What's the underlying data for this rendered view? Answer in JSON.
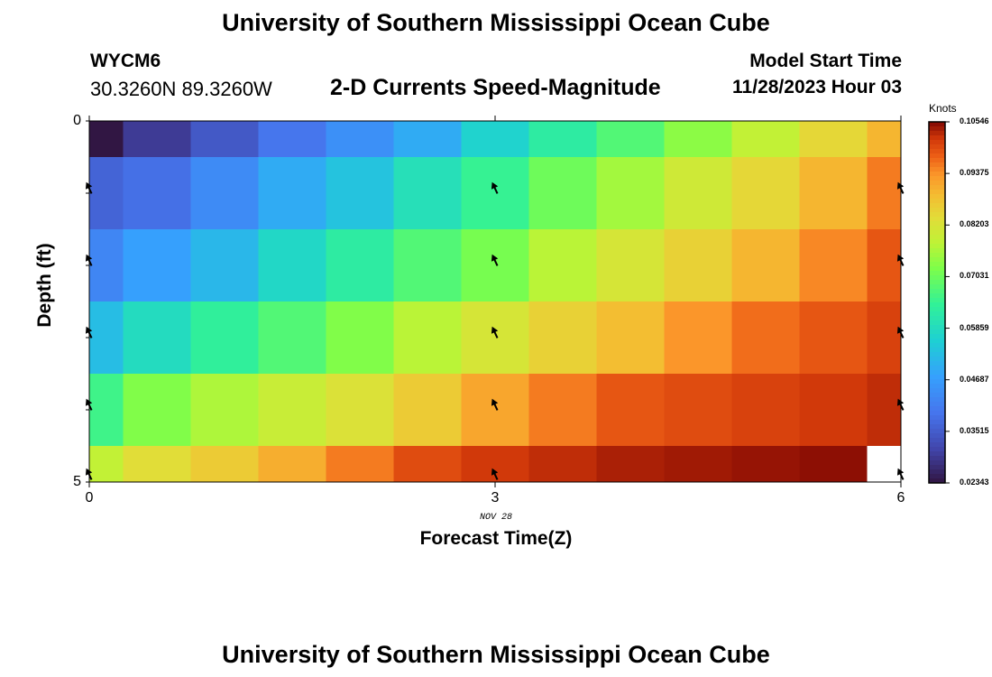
{
  "title_top": "University of Southern Mississippi Ocean Cube",
  "title_bottom": "University of Southern Mississippi Ocean Cube",
  "station": {
    "id": "WYCM6",
    "coordinates": "30.3260N  89.3260W"
  },
  "model": {
    "label": "Model Start Time",
    "time": "11/28/2023 Hour 03"
  },
  "chart_data": {
    "type": "heatmap",
    "title": "2-D Currents Speed-Magnitude",
    "xlabel": "Forecast Time(Z)",
    "ylabel": "Depth (ft)",
    "date_label": "NOV 28",
    "x_ticks": [
      "0",
      "3",
      "6"
    ],
    "y_ticks": [
      "0",
      "5"
    ],
    "xlim": [
      0,
      6
    ],
    "ylim": [
      0,
      5
    ],
    "colorbar": {
      "unit": "Knots",
      "min": 0.02343,
      "max": 0.10546,
      "ticks": [
        "0.10546",
        "0.09375",
        "0.08203",
        "0.07031",
        "0.05859",
        "0.04687",
        "0.03515",
        "0.02343"
      ]
    },
    "time_columns": [
      0,
      0.5,
      1,
      1.5,
      2,
      2.5,
      3,
      3.5,
      4,
      4.5,
      5,
      5.5,
      6
    ],
    "depth_rows": [
      0,
      1,
      2,
      3,
      4,
      5
    ],
    "speed_grid": [
      [
        0.024,
        0.03,
        0.035,
        0.04,
        0.045,
        0.05,
        0.057,
        0.063,
        0.068,
        0.074,
        0.079,
        0.085,
        0.09
      ],
      [
        0.037,
        0.039,
        0.044,
        0.05,
        0.054,
        0.06,
        0.065,
        0.071,
        0.076,
        0.081,
        0.085,
        0.09,
        0.096
      ],
      [
        0.043,
        0.048,
        0.052,
        0.058,
        0.063,
        0.068,
        0.072,
        0.078,
        0.082,
        0.086,
        0.09,
        0.095,
        0.099
      ],
      [
        0.053,
        0.059,
        0.064,
        0.068,
        0.073,
        0.078,
        0.082,
        0.086,
        0.089,
        0.094,
        0.097,
        0.099,
        0.101
      ],
      [
        0.066,
        0.073,
        0.077,
        0.08,
        0.083,
        0.087,
        0.092,
        0.096,
        0.099,
        0.1,
        0.101,
        0.102,
        0.103
      ],
      [
        0.079,
        0.084,
        0.087,
        0.091,
        0.096,
        0.1,
        0.102,
        0.103,
        0.104,
        0.1045,
        0.105,
        0.1054,
        null
      ]
    ],
    "vector_times": [
      0,
      3,
      6
    ],
    "vector_depths": [
      1,
      2,
      3,
      4,
      5
    ],
    "vector_direction": "north-northwest"
  }
}
